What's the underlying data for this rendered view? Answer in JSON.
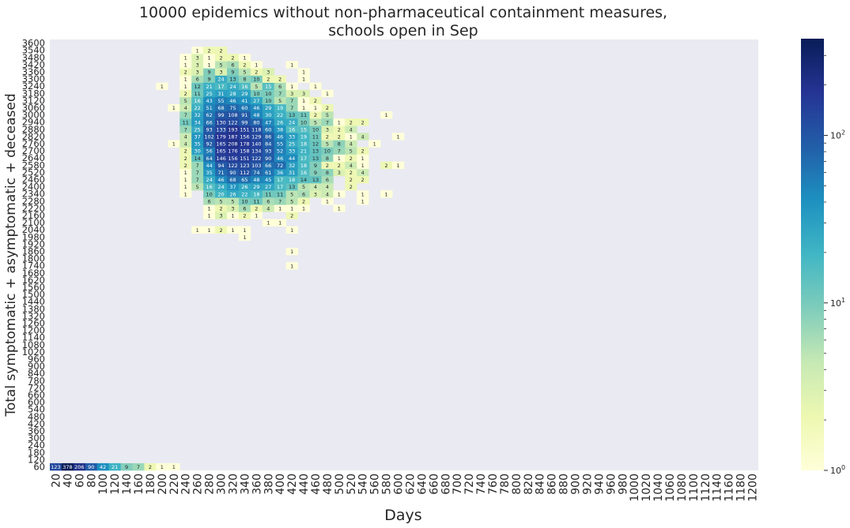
{
  "chart_data": {
    "type": "heatmap",
    "title_lines": [
      "10000 epidemics without non-pharmaceutical containment measures,",
      "schools open in Sep"
    ],
    "xlabel": "Days",
    "ylabel": "Total symptomatic + asymptomatic + deceased",
    "x_categories": [
      20,
      40,
      60,
      80,
      100,
      120,
      140,
      160,
      180,
      200,
      220,
      240,
      260,
      280,
      300,
      320,
      340,
      360,
      380,
      400,
      420,
      440,
      460,
      480,
      500,
      520,
      540,
      560,
      580,
      600,
      620,
      640,
      660,
      680,
      700,
      720,
      740,
      760,
      780,
      800,
      820,
      840,
      860,
      880,
      900,
      920,
      940,
      960,
      980,
      1000,
      1020,
      1040,
      1060,
      1080,
      1100,
      1120,
      1140,
      1160,
      1180,
      1200
    ],
    "y_categories": [
      60,
      120,
      180,
      240,
      300,
      360,
      420,
      480,
      540,
      600,
      660,
      720,
      780,
      840,
      900,
      960,
      1020,
      1080,
      1140,
      1200,
      1260,
      1320,
      1380,
      1440,
      1500,
      1560,
      1620,
      1680,
      1740,
      1800,
      1860,
      1920,
      1980,
      2040,
      2100,
      2160,
      2220,
      2280,
      2340,
      2400,
      2460,
      2520,
      2580,
      2640,
      2700,
      2760,
      2820,
      2880,
      2940,
      3000,
      3060,
      3120,
      3180,
      3240,
      3300,
      3360,
      3420,
      3480,
      3540,
      3600
    ],
    "colorbar": {
      "scale": "log",
      "min": 1,
      "max": 378,
      "cmap": "YlGnBu",
      "tick_labels": [
        "10^0",
        "10^1",
        "10^2"
      ]
    },
    "nonzero_cells": [
      [
        20,
        60,
        123
      ],
      [
        40,
        60,
        378
      ],
      [
        60,
        60,
        206
      ],
      [
        80,
        60,
        90
      ],
      [
        100,
        60,
        42
      ],
      [
        120,
        60,
        21
      ],
      [
        140,
        60,
        9
      ],
      [
        160,
        60,
        7
      ],
      [
        180,
        60,
        2
      ],
      [
        200,
        60,
        1
      ],
      [
        220,
        60,
        1
      ],
      [
        420,
        1740,
        1
      ],
      [
        420,
        1860,
        1
      ],
      [
        340,
        1980,
        1
      ],
      [
        260,
        2040,
        1
      ],
      [
        280,
        2040,
        1
      ],
      [
        300,
        2040,
        2
      ],
      [
        320,
        2040,
        1
      ],
      [
        340,
        2040,
        1
      ],
      [
        420,
        2040,
        1
      ],
      [
        380,
        2100,
        1
      ],
      [
        400,
        2100,
        1
      ],
      [
        280,
        2160,
        1
      ],
      [
        300,
        2160,
        3
      ],
      [
        320,
        2160,
        1
      ],
      [
        340,
        2160,
        2
      ],
      [
        360,
        2160,
        1
      ],
      [
        420,
        2160,
        2
      ],
      [
        280,
        2220,
        1
      ],
      [
        300,
        2220,
        2
      ],
      [
        320,
        2220,
        3
      ],
      [
        340,
        2220,
        6
      ],
      [
        360,
        2220,
        2
      ],
      [
        380,
        2220,
        4
      ],
      [
        400,
        2220,
        1
      ],
      [
        420,
        2220,
        1
      ],
      [
        440,
        2220,
        1
      ],
      [
        500,
        2220,
        1
      ],
      [
        280,
        2280,
        6
      ],
      [
        300,
        2280,
        5
      ],
      [
        320,
        2280,
        5
      ],
      [
        340,
        2280,
        10
      ],
      [
        360,
        2280,
        11
      ],
      [
        380,
        2280,
        6
      ],
      [
        400,
        2280,
        7
      ],
      [
        420,
        2280,
        5
      ],
      [
        440,
        2280,
        2
      ],
      [
        480,
        2280,
        1
      ],
      [
        540,
        2280,
        1
      ],
      [
        240,
        2340,
        1
      ],
      [
        280,
        2340,
        10
      ],
      [
        300,
        2340,
        20
      ],
      [
        320,
        2340,
        26
      ],
      [
        340,
        2340,
        22
      ],
      [
        360,
        2340,
        18
      ],
      [
        380,
        2340,
        11
      ],
      [
        400,
        2340,
        11
      ],
      [
        420,
        2340,
        5
      ],
      [
        440,
        2340,
        6
      ],
      [
        460,
        2340,
        3
      ],
      [
        480,
        2340,
        4
      ],
      [
        500,
        2340,
        1
      ],
      [
        540,
        2340,
        1
      ],
      [
        580,
        2340,
        1
      ],
      [
        240,
        2400,
        1
      ],
      [
        260,
        2400,
        5
      ],
      [
        280,
        2400,
        16
      ],
      [
        300,
        2400,
        24
      ],
      [
        320,
        2400,
        37
      ],
      [
        340,
        2400,
        26
      ],
      [
        360,
        2400,
        29
      ],
      [
        380,
        2400,
        27
      ],
      [
        400,
        2400,
        17
      ],
      [
        420,
        2400,
        13
      ],
      [
        440,
        2400,
        5
      ],
      [
        460,
        2400,
        4
      ],
      [
        480,
        2400,
        4
      ],
      [
        520,
        2400,
        2
      ],
      [
        240,
        2460,
        1
      ],
      [
        260,
        2460,
        7
      ],
      [
        280,
        2460,
        24
      ],
      [
        300,
        2460,
        46
      ],
      [
        320,
        2460,
        68
      ],
      [
        340,
        2460,
        65
      ],
      [
        360,
        2460,
        48
      ],
      [
        380,
        2460,
        45
      ],
      [
        400,
        2460,
        17
      ],
      [
        420,
        2460,
        18
      ],
      [
        440,
        2460,
        14
      ],
      [
        460,
        2460,
        13
      ],
      [
        480,
        2460,
        6
      ],
      [
        520,
        2460,
        2
      ],
      [
        540,
        2460,
        2
      ],
      [
        240,
        2520,
        1
      ],
      [
        260,
        2520,
        7
      ],
      [
        280,
        2520,
        35
      ],
      [
        300,
        2520,
        71
      ],
      [
        320,
        2520,
        90
      ],
      [
        340,
        2520,
        112
      ],
      [
        360,
        2520,
        74
      ],
      [
        380,
        2520,
        61
      ],
      [
        400,
        2520,
        36
      ],
      [
        420,
        2520,
        31
      ],
      [
        440,
        2520,
        16
      ],
      [
        460,
        2520,
        9
      ],
      [
        480,
        2520,
        8
      ],
      [
        500,
        2520,
        3
      ],
      [
        520,
        2520,
        2
      ],
      [
        540,
        2520,
        4
      ],
      [
        240,
        2580,
        2
      ],
      [
        260,
        2580,
        7
      ],
      [
        280,
        2580,
        44
      ],
      [
        300,
        2580,
        94
      ],
      [
        320,
        2580,
        122
      ],
      [
        340,
        2580,
        123
      ],
      [
        360,
        2580,
        103
      ],
      [
        380,
        2580,
        66
      ],
      [
        400,
        2580,
        72
      ],
      [
        420,
        2580,
        32
      ],
      [
        440,
        2580,
        18
      ],
      [
        460,
        2580,
        9
      ],
      [
        480,
        2580,
        2
      ],
      [
        500,
        2580,
        2
      ],
      [
        520,
        2580,
        4
      ],
      [
        540,
        2580,
        1
      ],
      [
        580,
        2580,
        2
      ],
      [
        600,
        2580,
        1
      ],
      [
        240,
        2640,
        2
      ],
      [
        260,
        2640,
        14
      ],
      [
        280,
        2640,
        64
      ],
      [
        300,
        2640,
        146
      ],
      [
        320,
        2640,
        156
      ],
      [
        340,
        2640,
        151
      ],
      [
        360,
        2640,
        122
      ],
      [
        380,
        2640,
        90
      ],
      [
        400,
        2640,
        46
      ],
      [
        420,
        2640,
        44
      ],
      [
        440,
        2640,
        17
      ],
      [
        460,
        2640,
        13
      ],
      [
        480,
        2640,
        8
      ],
      [
        500,
        2640,
        1
      ],
      [
        520,
        2640,
        2
      ],
      [
        540,
        2640,
        1
      ],
      [
        240,
        2700,
        2
      ],
      [
        260,
        2700,
        30
      ],
      [
        280,
        2700,
        56
      ],
      [
        300,
        2700,
        165
      ],
      [
        320,
        2700,
        176
      ],
      [
        340,
        2700,
        158
      ],
      [
        360,
        2700,
        134
      ],
      [
        380,
        2700,
        93
      ],
      [
        400,
        2700,
        52
      ],
      [
        420,
        2700,
        33
      ],
      [
        440,
        2700,
        21
      ],
      [
        460,
        2700,
        13
      ],
      [
        480,
        2700,
        10
      ],
      [
        500,
        2700,
        7
      ],
      [
        520,
        2700,
        5
      ],
      [
        540,
        2700,
        2
      ],
      [
        220,
        2760,
        1
      ],
      [
        240,
        2760,
        4
      ],
      [
        260,
        2760,
        35
      ],
      [
        280,
        2760,
        92
      ],
      [
        300,
        2760,
        165
      ],
      [
        320,
        2760,
        208
      ],
      [
        340,
        2760,
        178
      ],
      [
        360,
        2760,
        140
      ],
      [
        380,
        2760,
        84
      ],
      [
        400,
        2760,
        55
      ],
      [
        420,
        2760,
        25
      ],
      [
        440,
        2760,
        18
      ],
      [
        460,
        2760,
        12
      ],
      [
        480,
        2760,
        5
      ],
      [
        500,
        2760,
        8
      ],
      [
        520,
        2760,
        4
      ],
      [
        560,
        2760,
        1
      ],
      [
        240,
        2820,
        4
      ],
      [
        260,
        2820,
        37
      ],
      [
        280,
        2820,
        102
      ],
      [
        300,
        2820,
        179
      ],
      [
        320,
        2820,
        187
      ],
      [
        340,
        2820,
        156
      ],
      [
        360,
        2820,
        129
      ],
      [
        380,
        2820,
        86
      ],
      [
        400,
        2820,
        46
      ],
      [
        420,
        2820,
        33
      ],
      [
        440,
        2820,
        19
      ],
      [
        460,
        2820,
        11
      ],
      [
        480,
        2820,
        2
      ],
      [
        500,
        2820,
        2
      ],
      [
        520,
        2820,
        1
      ],
      [
        540,
        2820,
        4
      ],
      [
        600,
        2820,
        1
      ],
      [
        240,
        2880,
        7
      ],
      [
        260,
        2880,
        25
      ],
      [
        280,
        2880,
        93
      ],
      [
        300,
        2880,
        133
      ],
      [
        320,
        2880,
        193
      ],
      [
        340,
        2880,
        151
      ],
      [
        360,
        2880,
        118
      ],
      [
        380,
        2880,
        60
      ],
      [
        400,
        2880,
        38
      ],
      [
        420,
        2880,
        16
      ],
      [
        440,
        2880,
        15
      ],
      [
        460,
        2880,
        10
      ],
      [
        480,
        2880,
        3
      ],
      [
        500,
        2880,
        2
      ],
      [
        520,
        2880,
        4
      ],
      [
        240,
        2940,
        11
      ],
      [
        260,
        2940,
        34
      ],
      [
        280,
        2940,
        66
      ],
      [
        300,
        2940,
        130
      ],
      [
        320,
        2940,
        122
      ],
      [
        340,
        2940,
        99
      ],
      [
        360,
        2940,
        80
      ],
      [
        380,
        2940,
        47
      ],
      [
        400,
        2940,
        26
      ],
      [
        420,
        2940,
        24
      ],
      [
        440,
        2940,
        10
      ],
      [
        460,
        2940,
        5
      ],
      [
        480,
        2940,
        7
      ],
      [
        500,
        2940,
        1
      ],
      [
        520,
        2940,
        2
      ],
      [
        540,
        2940,
        2
      ],
      [
        240,
        3000,
        7
      ],
      [
        260,
        3000,
        32
      ],
      [
        280,
        3000,
        62
      ],
      [
        300,
        3000,
        99
      ],
      [
        320,
        3000,
        108
      ],
      [
        340,
        3000,
        91
      ],
      [
        360,
        3000,
        48
      ],
      [
        380,
        3000,
        30
      ],
      [
        400,
        3000,
        22
      ],
      [
        420,
        3000,
        13
      ],
      [
        440,
        3000,
        11
      ],
      [
        460,
        3000,
        2
      ],
      [
        480,
        3000,
        5
      ],
      [
        580,
        3000,
        1
      ],
      [
        220,
        3060,
        1
      ],
      [
        240,
        3060,
        4
      ],
      [
        260,
        3060,
        22
      ],
      [
        280,
        3060,
        51
      ],
      [
        300,
        3060,
        68
      ],
      [
        320,
        3060,
        75
      ],
      [
        340,
        3060,
        60
      ],
      [
        360,
        3060,
        46
      ],
      [
        380,
        3060,
        29
      ],
      [
        400,
        3060,
        19
      ],
      [
        420,
        3060,
        7
      ],
      [
        440,
        3060,
        1
      ],
      [
        460,
        3060,
        1
      ],
      [
        480,
        3060,
        2
      ],
      [
        240,
        3120,
        5
      ],
      [
        260,
        3120,
        16
      ],
      [
        280,
        3120,
        43
      ],
      [
        300,
        3120,
        55
      ],
      [
        320,
        3120,
        46
      ],
      [
        340,
        3120,
        41
      ],
      [
        360,
        3120,
        27
      ],
      [
        380,
        3120,
        10
      ],
      [
        400,
        3120,
        5
      ],
      [
        420,
        3120,
        7
      ],
      [
        440,
        3120,
        1
      ],
      [
        460,
        3120,
        2
      ],
      [
        240,
        3180,
        2
      ],
      [
        260,
        3180,
        11
      ],
      [
        280,
        3180,
        25
      ],
      [
        300,
        3180,
        31
      ],
      [
        320,
        3180,
        28
      ],
      [
        340,
        3180,
        29
      ],
      [
        360,
        3180,
        10
      ],
      [
        380,
        3180,
        10
      ],
      [
        400,
        3180,
        7
      ],
      [
        420,
        3180,
        3
      ],
      [
        440,
        3180,
        3
      ],
      [
        480,
        3180,
        1
      ],
      [
        200,
        3240,
        1
      ],
      [
        240,
        3240,
        1
      ],
      [
        260,
        3240,
        12
      ],
      [
        280,
        3240,
        21
      ],
      [
        300,
        3240,
        17
      ],
      [
        320,
        3240,
        24
      ],
      [
        340,
        3240,
        16
      ],
      [
        360,
        3240,
        5
      ],
      [
        380,
        3240,
        15
      ],
      [
        400,
        3240,
        6
      ],
      [
        420,
        3240,
        1
      ],
      [
        460,
        3240,
        1
      ],
      [
        240,
        3300,
        1
      ],
      [
        260,
        3300,
        6
      ],
      [
        280,
        3300,
        9
      ],
      [
        300,
        3300,
        24
      ],
      [
        320,
        3300,
        13
      ],
      [
        340,
        3300,
        8
      ],
      [
        360,
        3300,
        10
      ],
      [
        380,
        3300,
        2
      ],
      [
        400,
        3300,
        2
      ],
      [
        440,
        3300,
        1
      ],
      [
        240,
        3360,
        2
      ],
      [
        260,
        3360,
        3
      ],
      [
        280,
        3360,
        9
      ],
      [
        300,
        3360,
        3
      ],
      [
        320,
        3360,
        9
      ],
      [
        340,
        3360,
        5
      ],
      [
        360,
        3360,
        2
      ],
      [
        380,
        3360,
        3
      ],
      [
        440,
        3360,
        1
      ],
      [
        240,
        3420,
        1
      ],
      [
        260,
        3420,
        3
      ],
      [
        280,
        3420,
        1
      ],
      [
        300,
        3420,
        5
      ],
      [
        320,
        3420,
        6
      ],
      [
        340,
        3420,
        2
      ],
      [
        360,
        3420,
        1
      ],
      [
        420,
        3420,
        1
      ],
      [
        240,
        3480,
        1
      ],
      [
        260,
        3480,
        3
      ],
      [
        280,
        3480,
        1
      ],
      [
        300,
        3480,
        2
      ],
      [
        320,
        3480,
        2
      ],
      [
        340,
        3480,
        1
      ],
      [
        260,
        3540,
        1
      ],
      [
        280,
        3540,
        2
      ],
      [
        300,
        3540,
        2
      ]
    ]
  }
}
